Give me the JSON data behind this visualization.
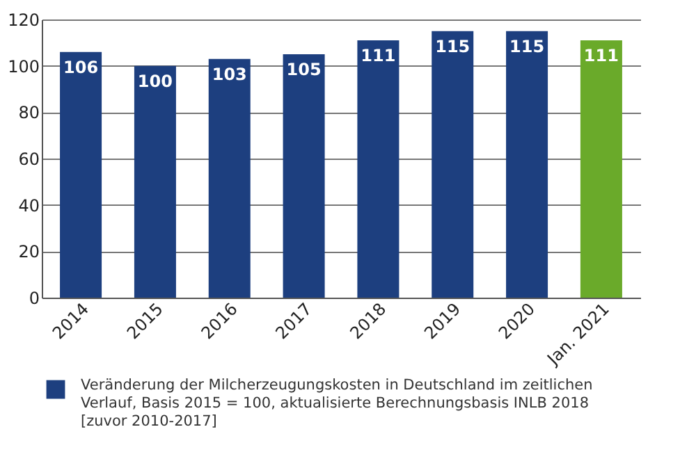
{
  "chart_data": {
    "type": "bar",
    "categories": [
      "2014",
      "2015",
      "2016",
      "2017",
      "2018",
      "2019",
      "2020",
      "Jan. 2021"
    ],
    "series": [
      {
        "name": "Veränderung der Milcherzeugungskosten in Deutschland im zeitlichen Verlauf, Basis 2015 = 100, aktualisierte Berechnungsbasis INLB 2018 [zuvor 2010-2017]",
        "values": [
          106,
          100,
          103,
          105,
          111,
          115,
          115,
          111
        ],
        "colors": [
          "#1d3f7f",
          "#1d3f7f",
          "#1d3f7f",
          "#1d3f7f",
          "#1d3f7f",
          "#1d3f7f",
          "#1d3f7f",
          "#6aaa2a"
        ]
      }
    ],
    "ylim": [
      0,
      120
    ],
    "yticks": [
      0,
      20,
      40,
      60,
      80,
      100,
      120
    ],
    "grid": "y",
    "data_labels": true,
    "legend": "bottom"
  }
}
